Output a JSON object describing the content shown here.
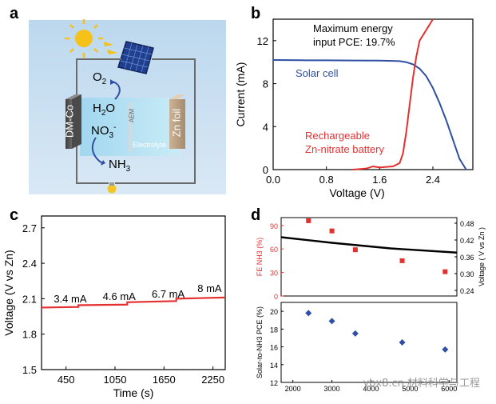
{
  "panels": {
    "a": {
      "letter": "a",
      "labels": {
        "o2": "O",
        "o2_sub": "2",
        "h2o_h": "H",
        "h2o_sub": "2",
        "h2o_o": "O",
        "no3": "NO",
        "no3_sub": "3",
        "no3_sup": "-",
        "nh3": "NH",
        "nh3_sub": "3",
        "dmco": "DM-Co",
        "aem": "AEM",
        "electrolyte": "Electrolyte",
        "znfoil": "Zn foil"
      }
    },
    "b": {
      "letter": "b"
    },
    "c": {
      "letter": "c"
    },
    "d": {
      "letter": "d"
    }
  },
  "watermark": "ybx8.cn 材料科学与工程",
  "chart_data": [
    {
      "id": "b",
      "type": "line",
      "xlabel": "Voltage (V)",
      "ylabel": "Current (mA)",
      "xlim": [
        0.0,
        3.0
      ],
      "ylim": [
        0,
        14
      ],
      "xticks": [
        "0.0",
        "0.8",
        "1.6",
        "2.4"
      ],
      "yticks": [
        "0",
        "4",
        "8",
        "12"
      ],
      "annotation": [
        "Maximum energy",
        "input PCE: 19.7%"
      ],
      "series": [
        {
          "name": "Solar cell",
          "color": "#2e4fa3",
          "x": [
            0.0,
            0.4,
            0.8,
            1.2,
            1.6,
            1.9,
            2.0,
            2.1,
            2.2,
            2.3,
            2.4,
            2.5,
            2.6,
            2.7,
            2.8,
            2.9
          ],
          "y": [
            10.2,
            10.18,
            10.17,
            10.16,
            10.15,
            10.1,
            10.0,
            9.8,
            9.4,
            8.7,
            7.6,
            6.2,
            4.6,
            2.8,
            1.0,
            0
          ]
        },
        {
          "name": "Rechargeable\nZn-nitrate battery",
          "color": "#e53030",
          "x": [
            1.2,
            1.4,
            1.5,
            1.6,
            1.7,
            1.8,
            1.9,
            1.95,
            2.0,
            2.05,
            2.1,
            2.15,
            2.2,
            2.3,
            2.4
          ],
          "y": [
            0,
            0.1,
            0.3,
            0.2,
            0.25,
            0.3,
            0.6,
            1.5,
            3.5,
            6.0,
            8.5,
            10.5,
            12.0,
            13.0,
            14.0
          ]
        }
      ]
    },
    {
      "id": "c",
      "type": "line",
      "xlabel": "Time (s)",
      "ylabel": "Voltage (V vs Zn)",
      "xlim": [
        150,
        2400
      ],
      "ylim": [
        1.5,
        2.8
      ],
      "xticks": [
        "450",
        "1050",
        "1650",
        "2250"
      ],
      "yticks": [
        "1.5",
        "1.8",
        "2.1",
        "2.4",
        "2.7"
      ],
      "annotations": [
        "3.4 mA",
        "4.6 mA",
        "6.7 mA",
        "8 mA"
      ],
      "series": [
        {
          "name": "",
          "color": "#e53030",
          "x": [
            150,
            600,
            600,
            1200,
            1200,
            1800,
            1800,
            2400
          ],
          "y": [
            2.025,
            2.03,
            2.045,
            2.05,
            2.07,
            2.08,
            2.1,
            2.11
          ]
        }
      ]
    },
    {
      "id": "d_top",
      "type": "scatter",
      "ylabel_left": "FE",
      "ylabel_left_sub": "NH3",
      "ylabel_left_unit": "(%)",
      "ylabel_right": "Voltage ( V vs Zn )",
      "xlim": [
        1700,
        6200
      ],
      "ylim": [
        0,
        100
      ],
      "yticks": [
        "0",
        "30",
        "60",
        "90"
      ],
      "yticks_right": [
        "0.24",
        "0.30",
        "0.36",
        "0.42",
        "0.48"
      ],
      "series": [
        {
          "name": "FE",
          "color": "#e53030",
          "marker": "square",
          "x": [
            2400,
            3000,
            3600,
            4800,
            5900
          ],
          "y": [
            96,
            83,
            59,
            45,
            31
          ]
        },
        {
          "name": "Voltage",
          "color": "#000000",
          "marker": "line",
          "x": [
            1700,
            3000,
            4500,
            6200
          ],
          "y": [
            0.43,
            0.41,
            0.39,
            0.375
          ]
        }
      ]
    },
    {
      "id": "d_bottom",
      "type": "scatter",
      "xlabel": "",
      "ylabel": "Solar-to-NH",
      "ylabel_sub": "3",
      "ylabel_unit": "PCE (%)",
      "xlim": [
        1700,
        6200
      ],
      "ylim": [
        12,
        21
      ],
      "xticks": [
        "2000",
        "3000",
        "4000",
        "5000",
        "6000"
      ],
      "yticks": [
        "12",
        "14",
        "16",
        "18",
        "20"
      ],
      "series": [
        {
          "name": "PCE",
          "color": "#2e4fa3",
          "marker": "diamond",
          "x": [
            2400,
            3000,
            3600,
            4800,
            5900
          ],
          "y": [
            19.8,
            18.9,
            17.5,
            16.5,
            15.7
          ]
        }
      ]
    }
  ]
}
